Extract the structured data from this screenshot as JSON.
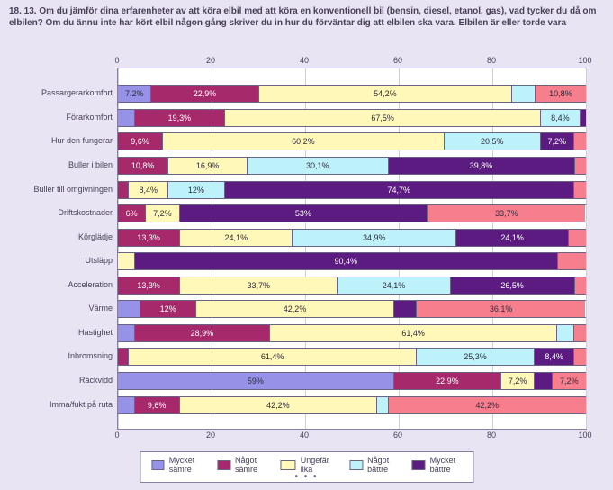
{
  "title": "18. 13. Om du jämför dina erfarenheter av att köra elbil med att köra en konventionell bil (bensin, diesel, etanol, gas), vad tycker du då om elbilen? Om du ännu inte har kört elbil någon gång skriver du in hur du förväntar dig att elbilen ska vara.\nElbilen är eller torde vara",
  "panel_bg": "#e9e4f3",
  "chart_bg": "#ffffff",
  "grid_color": "#d1cde0",
  "border_color": "#88809e",
  "text_color": "#474058",
  "series": [
    {
      "key": "s1",
      "label": "Mycket sämre",
      "color": "#9592e8"
    },
    {
      "key": "s2",
      "label": "Något sämre",
      "color": "#a6296b"
    },
    {
      "key": "s3",
      "label": "Ungefär lika",
      "color": "#fff8b9"
    },
    {
      "key": "s4",
      "label": "Något bättre",
      "color": "#bdf2fb"
    },
    {
      "key": "s5",
      "label": "Mycket bättre",
      "color": "#5c1b80"
    },
    {
      "key": "s6",
      "label": "",
      "color": "#f77e8c"
    }
  ],
  "xticks": [
    0,
    20,
    40,
    60,
    80,
    100
  ],
  "xlim": [
    0,
    100
  ],
  "rows": [
    {
      "label": "Passargerarkomfort",
      "segs": [
        {
          "k": "s1",
          "v": 7.2,
          "t": "7,2%"
        },
        {
          "k": "s2",
          "v": 22.9,
          "t": "22,9%"
        },
        {
          "k": "s3",
          "v": 54.2,
          "t": "54,2%"
        },
        {
          "k": "s4",
          "v": 4.9,
          "t": ""
        },
        {
          "k": "s6",
          "v": 10.8,
          "t": "10,8%"
        }
      ]
    },
    {
      "label": "Förarkomfort",
      "segs": [
        {
          "k": "s1",
          "v": 3.6,
          "t": ""
        },
        {
          "k": "s2",
          "v": 19.3,
          "t": "19,3%"
        },
        {
          "k": "s3",
          "v": 67.5,
          "t": "67,5%"
        },
        {
          "k": "s4",
          "v": 8.4,
          "t": "8,4%"
        },
        {
          "k": "s5",
          "v": 1.2,
          "t": ""
        }
      ]
    },
    {
      "label": "Hur den fungerar",
      "segs": [
        {
          "k": "s2",
          "v": 9.6,
          "t": "9,6%"
        },
        {
          "k": "s3",
          "v": 60.2,
          "t": "60,2%"
        },
        {
          "k": "s4",
          "v": 20.5,
          "t": "20,5%"
        },
        {
          "k": "s5",
          "v": 7.2,
          "t": "7,2%"
        },
        {
          "k": "s6",
          "v": 2.5,
          "t": ""
        }
      ]
    },
    {
      "label": "Buller i bilen",
      "segs": [
        {
          "k": "s2",
          "v": 10.8,
          "t": "10,8%"
        },
        {
          "k": "s3",
          "v": 16.9,
          "t": "16,9%"
        },
        {
          "k": "s4",
          "v": 30.1,
          "t": "30,1%"
        },
        {
          "k": "s5",
          "v": 39.8,
          "t": "39,8%"
        },
        {
          "k": "s6",
          "v": 2.4,
          "t": ""
        }
      ]
    },
    {
      "label": "Buller till omgivningen",
      "segs": [
        {
          "k": "s2",
          "v": 2.4,
          "t": ""
        },
        {
          "k": "s3",
          "v": 8.4,
          "t": "8,4%"
        },
        {
          "k": "s4",
          "v": 12.0,
          "t": "12%"
        },
        {
          "k": "s5",
          "v": 74.7,
          "t": "74,7%"
        },
        {
          "k": "s6",
          "v": 2.5,
          "t": ""
        }
      ]
    },
    {
      "label": "Driftskostnader",
      "segs": [
        {
          "k": "s2",
          "v": 6.0,
          "t": "6%"
        },
        {
          "k": "s3",
          "v": 7.2,
          "t": "7,2%"
        },
        {
          "k": "s5",
          "v": 53.0,
          "t": "53%"
        },
        {
          "k": "s6",
          "v": 33.7,
          "t": "33,7%"
        }
      ]
    },
    {
      "label": "Körglädje",
      "segs": [
        {
          "k": "s2",
          "v": 13.3,
          "t": "13,3%"
        },
        {
          "k": "s3",
          "v": 24.1,
          "t": "24,1%"
        },
        {
          "k": "s4",
          "v": 34.9,
          "t": "34,9%"
        },
        {
          "k": "s5",
          "v": 24.1,
          "t": "24,1%"
        },
        {
          "k": "s6",
          "v": 3.6,
          "t": ""
        }
      ]
    },
    {
      "label": "Utsläpp",
      "segs": [
        {
          "k": "s3",
          "v": 3.6,
          "t": ""
        },
        {
          "k": "s5",
          "v": 90.4,
          "t": "90,4%"
        },
        {
          "k": "s6",
          "v": 6.0,
          "t": ""
        }
      ]
    },
    {
      "label": "Acceleration",
      "segs": [
        {
          "k": "s2",
          "v": 13.3,
          "t": "13,3%"
        },
        {
          "k": "s3",
          "v": 33.7,
          "t": "33,7%"
        },
        {
          "k": "s4",
          "v": 24.1,
          "t": "24,1%"
        },
        {
          "k": "s5",
          "v": 26.5,
          "t": "26,5%"
        },
        {
          "k": "s6",
          "v": 2.4,
          "t": ""
        }
      ]
    },
    {
      "label": "Värme",
      "segs": [
        {
          "k": "s1",
          "v": 4.8,
          "t": ""
        },
        {
          "k": "s2",
          "v": 12.0,
          "t": "12%"
        },
        {
          "k": "s3",
          "v": 42.2,
          "t": "42,2%"
        },
        {
          "k": "s5",
          "v": 4.8,
          "t": ""
        },
        {
          "k": "s6",
          "v": 36.1,
          "t": "36,1%"
        }
      ]
    },
    {
      "label": "Hastighet",
      "segs": [
        {
          "k": "s1",
          "v": 3.6,
          "t": ""
        },
        {
          "k": "s2",
          "v": 28.9,
          "t": "28,9%"
        },
        {
          "k": "s3",
          "v": 61.4,
          "t": "61,4%"
        },
        {
          "k": "s4",
          "v": 3.6,
          "t": ""
        },
        {
          "k": "s6",
          "v": 2.5,
          "t": ""
        }
      ]
    },
    {
      "label": "Inbromsning",
      "segs": [
        {
          "k": "s2",
          "v": 2.4,
          "t": ""
        },
        {
          "k": "s3",
          "v": 61.4,
          "t": "61,4%"
        },
        {
          "k": "s4",
          "v": 25.3,
          "t": "25,3%"
        },
        {
          "k": "s5",
          "v": 8.4,
          "t": "8,4%"
        },
        {
          "k": "s6",
          "v": 2.5,
          "t": ""
        }
      ]
    },
    {
      "label": "Räckvidd",
      "segs": [
        {
          "k": "s1",
          "v": 59.0,
          "t": "59%"
        },
        {
          "k": "s2",
          "v": 22.9,
          "t": "22,9%"
        },
        {
          "k": "s3",
          "v": 7.2,
          "t": "7,2%"
        },
        {
          "k": "s5",
          "v": 3.7,
          "t": ""
        },
        {
          "k": "s6",
          "v": 7.2,
          "t": "7,2%"
        }
      ]
    },
    {
      "label": "Imma/fukt på ruta",
      "segs": [
        {
          "k": "s1",
          "v": 3.6,
          "t": ""
        },
        {
          "k": "s2",
          "v": 9.6,
          "t": "9,6%"
        },
        {
          "k": "s3",
          "v": 42.2,
          "t": "42,2%"
        },
        {
          "k": "s4",
          "v": 2.4,
          "t": ""
        },
        {
          "k": "s6",
          "v": 42.2,
          "t": "42,2%"
        }
      ]
    }
  ]
}
